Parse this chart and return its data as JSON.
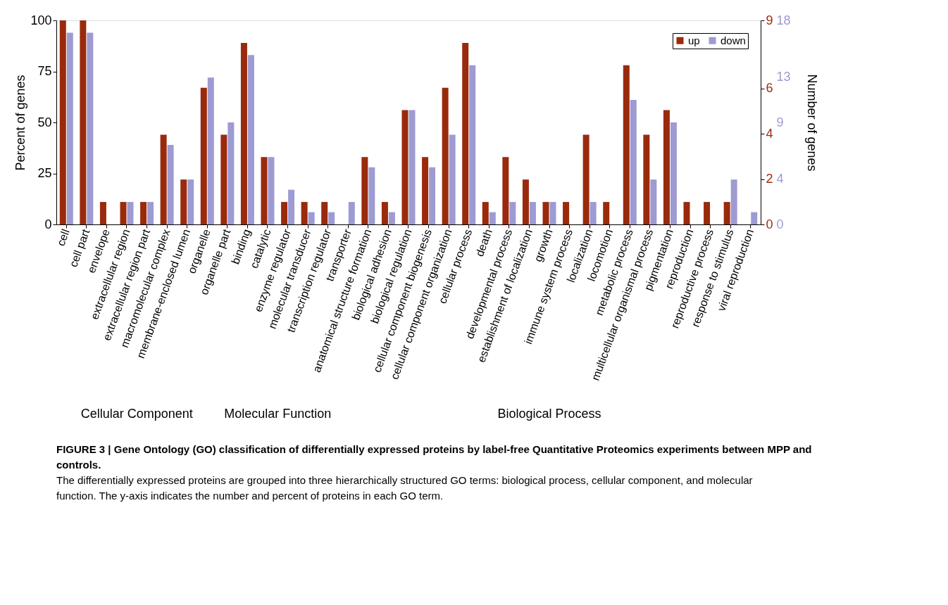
{
  "chart_data": {
    "type": "bar",
    "categories": [
      "cell",
      "cell part",
      "envelope",
      "extracellular region",
      "extracellular region part",
      "macromolecular complex",
      "membrane-enclosed lumen",
      "organelle",
      "organelle part",
      "binding",
      "catalytic",
      "enzyme regulator",
      "molecular transducer",
      "transcription regulator",
      "transporter",
      "anatomical structure formation",
      "biological adhesion",
      "biological regulation",
      "cellular component biogenesis",
      "cellular component organization",
      "cellular process",
      "death",
      "developmental process",
      "establishment of localization",
      "growth",
      "immune system process",
      "localization",
      "locomotion",
      "metabolic process",
      "multicellular organismal process",
      "pigmentation",
      "reproduction",
      "reproductive process",
      "response to stimulus",
      "viral reproduction"
    ],
    "series": [
      {
        "name": "up",
        "color": "#9a2a0c",
        "values": [
          100,
          100,
          11,
          11,
          11,
          44,
          22,
          67,
          44,
          89,
          33,
          11,
          11,
          11,
          0,
          33,
          11,
          56,
          33,
          67,
          89,
          11,
          33,
          22,
          11,
          11,
          44,
          11,
          78,
          44,
          56,
          11,
          11,
          11,
          0
        ]
      },
      {
        "name": "down",
        "color": "#9d9bd2",
        "values": [
          94,
          94,
          0,
          11,
          11,
          39,
          22,
          72,
          50,
          83,
          33,
          17,
          6,
          6,
          11,
          28,
          6,
          56,
          28,
          44,
          78,
          6,
          11,
          11,
          11,
          0,
          11,
          0,
          61,
          22,
          50,
          0,
          0,
          22,
          6
        ]
      }
    ],
    "ylabel": "Percent of genes",
    "ylim": [
      0,
      100
    ],
    "yticks": [
      0,
      25,
      50,
      75,
      100
    ],
    "y2label": "Number of genes",
    "y2lim": [
      0,
      9
    ],
    "y2ticks": [
      0,
      2,
      4,
      6,
      9
    ],
    "y3lim": [
      0,
      18
    ],
    "y3ticks": [
      0,
      4,
      9,
      13,
      18
    ],
    "grid": false,
    "legend": "top right",
    "annotations": [
      "Cellular Component",
      "Molecular Function",
      "Biological Process",
      "FIGURE 3 | Gene Ontology (GO) classification of differentially expressed proteins by label-free Quantitative Proteomics experiments between MPP and controls.",
      "The differentially expressed proteins are grouped into three hierarchically structured GO terms: biological process, cellular component, and molecular function. The y-axis indicates the number and percent of proteins in each GO term."
    ]
  }
}
